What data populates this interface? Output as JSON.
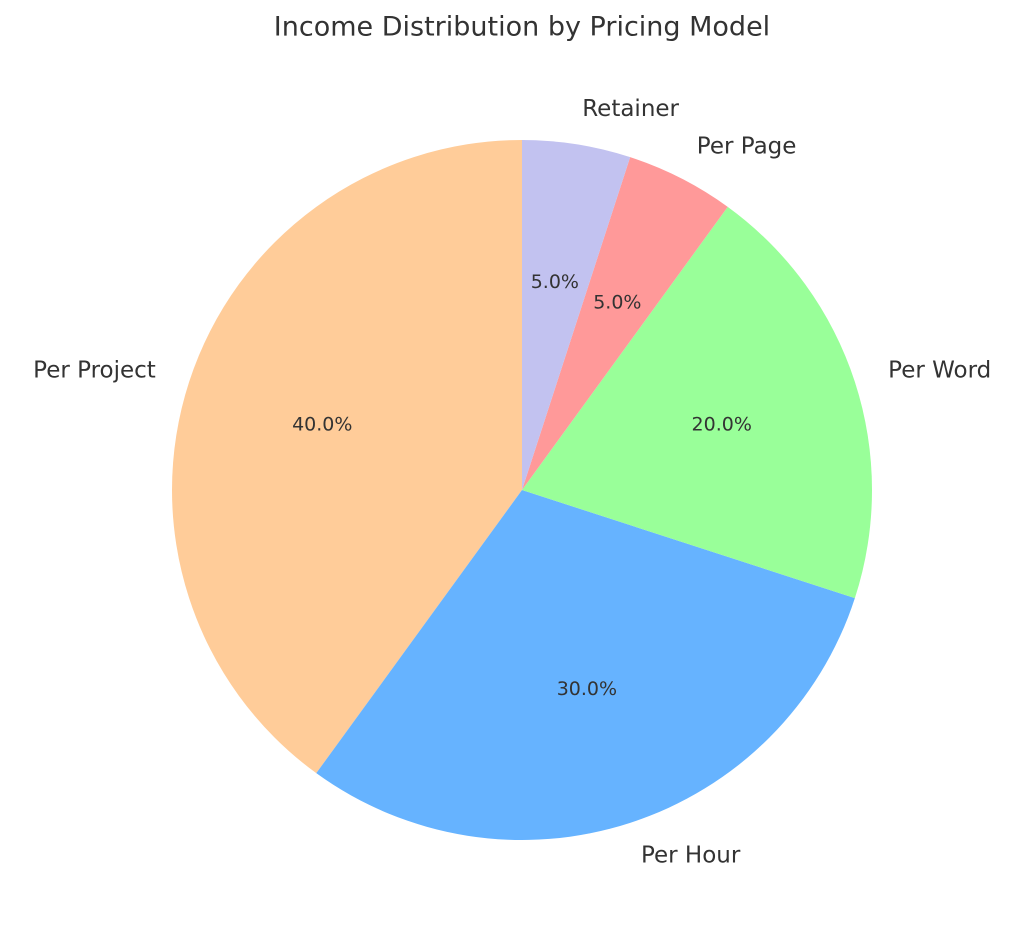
{
  "chart_data": {
    "type": "pie",
    "title": "Income Distribution by Pricing Model",
    "categories": [
      "Per Project",
      "Per Hour",
      "Per Word",
      "Per Page",
      "Retainer"
    ],
    "values": [
      40,
      30,
      20,
      5,
      5
    ],
    "value_labels": [
      "40.0%",
      "30.0%",
      "20.0%",
      "5.0%",
      "5.0%"
    ],
    "colors": [
      "#ffcc99",
      "#66b3ff",
      "#99ff99",
      "#ff9999",
      "#c2c2f0"
    ],
    "start_angle": 90
  }
}
